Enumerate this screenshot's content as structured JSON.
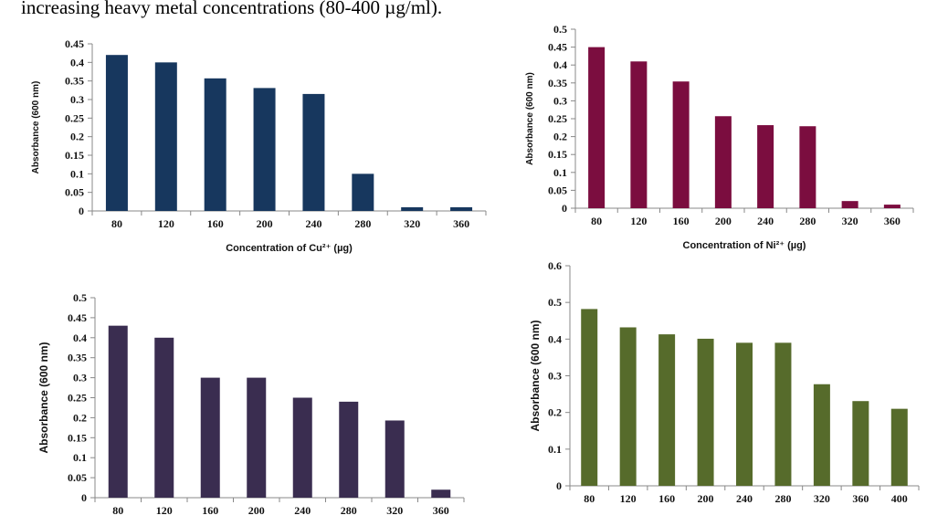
{
  "caption": "increasing heavy metal concentrations (80-400 µg/ml).",
  "chart_data": [
    {
      "type": "bar",
      "categories": [
        "80",
        "120",
        "160",
        "200",
        "240",
        "280",
        "320",
        "360"
      ],
      "values": [
        0.42,
        0.4,
        0.357,
        0.331,
        0.315,
        0.1,
        0.01,
        0.01
      ],
      "ylim": [
        0,
        0.45
      ],
      "yticks": [
        "0",
        "0.05",
        "0.1",
        "0.15",
        "0.2",
        "0.25",
        "0.3",
        "0.35",
        "0.4",
        "0.45"
      ],
      "ylabel": "Absorbance (600 nm)",
      "xlabel": "Concentration of Cu²⁺ (µg)",
      "color": "#17375e",
      "grid": false
    },
    {
      "type": "bar",
      "categories": [
        "80",
        "120",
        "160",
        "200",
        "240",
        "280",
        "320",
        "360"
      ],
      "values": [
        0.45,
        0.41,
        0.354,
        0.257,
        0.232,
        0.229,
        0.02,
        0.01
      ],
      "ylim": [
        0,
        0.5
      ],
      "yticks": [
        "0",
        "0.05",
        "0.1",
        "0.15",
        "0.2",
        "0.25",
        "0.3",
        "0.35",
        "0.4",
        "0.45",
        "0.5"
      ],
      "ylabel": "Absorbance (600 nm)",
      "xlabel": "Concentration of Ni²⁺ (µg)",
      "color": "#7b0d3f",
      "grid": false
    },
    {
      "type": "bar",
      "categories": [
        "80",
        "120",
        "160",
        "200",
        "240",
        "280",
        "320",
        "360"
      ],
      "values": [
        0.43,
        0.4,
        0.3,
        0.3,
        0.25,
        0.24,
        0.193,
        0.02
      ],
      "ylim": [
        0,
        0.5
      ],
      "yticks": [
        "0",
        "0.05",
        "0.1",
        "0.15",
        "0.2",
        "0.25",
        "0.3",
        "0.35",
        "0.4",
        "0.45",
        "0.5"
      ],
      "ylabel": "Absorbance (600 nm)",
      "xlabel": "",
      "color": "#3a2d50",
      "grid": false
    },
    {
      "type": "bar",
      "categories": [
        "80",
        "120",
        "160",
        "200",
        "240",
        "280",
        "320",
        "360",
        "400"
      ],
      "values": [
        0.482,
        0.432,
        0.413,
        0.401,
        0.39,
        0.39,
        0.277,
        0.231,
        0.21
      ],
      "ylim": [
        0,
        0.6
      ],
      "yticks": [
        "0",
        "0.1",
        "0.2",
        "0.3",
        "0.4",
        "0.5",
        "0.6"
      ],
      "ylabel": "Absorbance (600 nm)",
      "xlabel": "",
      "color": "#566b2b",
      "grid": false
    }
  ]
}
